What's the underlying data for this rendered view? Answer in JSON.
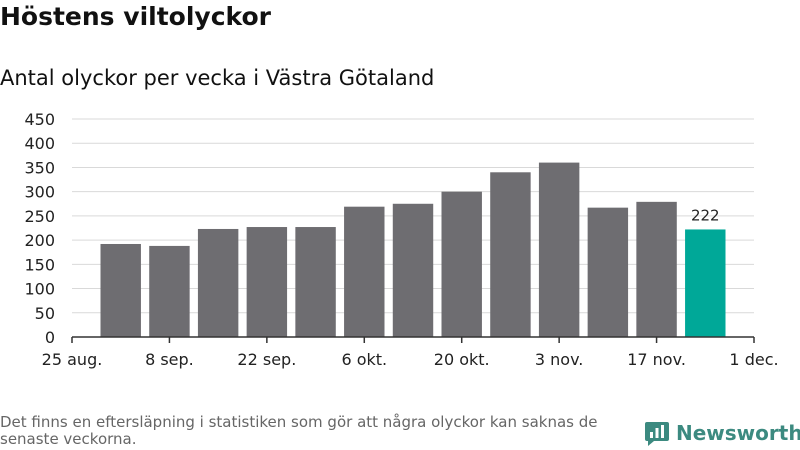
{
  "title": "Höstens viltolyckor",
  "subtitle": "Antal olyckor per vecka i Västra Götaland",
  "footnote": "Det finns en eftersläpning i statistiken som gör att några olyckor kan saknas de senaste veckorna.",
  "brand": {
    "name": "Newsworthy",
    "icon": "newsworthy-logo-icon"
  },
  "colors": {
    "bar": "#6e6d71",
    "highlight": "#00a898",
    "grid": "#d9d9d9",
    "axis": "#333333",
    "brand": "#3c8a80"
  },
  "chart_data": {
    "type": "bar",
    "title": "Höstens viltolyckor",
    "subtitle": "Antal olyckor per vecka i Västra Götaland",
    "xlabel": "",
    "ylabel": "",
    "ylim": [
      0,
      450
    ],
    "yticks": [
      "0",
      "50",
      "100",
      "150",
      "200",
      "250",
      "300",
      "350",
      "400",
      "450"
    ],
    "xtick_labels": [
      "25 aug.",
      "8 sep.",
      "22 sep.",
      "6 okt.",
      "20 okt.",
      "3 nov.",
      "17 nov.",
      "1 dec."
    ],
    "values": [
      192,
      188,
      223,
      227,
      227,
      269,
      275,
      300,
      340,
      360,
      267,
      279,
      222
    ],
    "highlight_index": 12,
    "data_labels": [
      {
        "index": 12,
        "text": "222"
      }
    ],
    "grid": true
  }
}
